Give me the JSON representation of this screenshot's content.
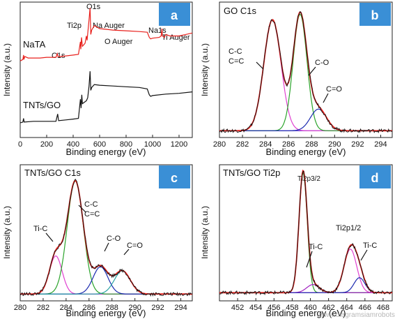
{
  "chart_data": [
    {
      "id": "a",
      "type": "line",
      "badge": "a",
      "xlabel": "Binding energy (eV)",
      "ylabel": "Intensity (a.u.)",
      "xlim": [
        0,
        1300
      ],
      "xticks": [
        0,
        200,
        400,
        600,
        800,
        1000,
        1200
      ],
      "series": [
        {
          "name": "NaTA",
          "color": "#e8201c",
          "points": [
            [
              0,
              0.62
            ],
            [
              20,
              0.63
            ],
            [
              25,
              0.66
            ],
            [
              28,
              0.63
            ],
            [
              35,
              0.65
            ],
            [
              60,
              0.64
            ],
            [
              100,
              0.64
            ],
            [
              150,
              0.64
            ],
            [
              200,
              0.645
            ],
            [
              270,
              0.645
            ],
            [
              280,
              0.67
            ],
            [
              285,
              0.65
            ],
            [
              300,
              0.65
            ],
            [
              350,
              0.655
            ],
            [
              400,
              0.66
            ],
            [
              440,
              0.665
            ],
            [
              455,
              0.75
            ],
            [
              458,
              0.7
            ],
            [
              463,
              0.78
            ],
            [
              470,
              0.72
            ],
            [
              490,
              0.74
            ],
            [
              500,
              0.79
            ],
            [
              505,
              0.76
            ],
            [
              520,
              0.9
            ],
            [
              528,
              0.98
            ],
            [
              533,
              0.8
            ],
            [
              540,
              0.83
            ],
            [
              560,
              0.86
            ],
            [
              580,
              0.85
            ],
            [
              600,
              0.84
            ],
            [
              650,
              0.835
            ],
            [
              700,
              0.83
            ],
            [
              800,
              0.825
            ],
            [
              900,
              0.82
            ],
            [
              960,
              0.815
            ],
            [
              975,
              0.78
            ],
            [
              985,
              0.77
            ],
            [
              1000,
              0.775
            ],
            [
              1050,
              0.78
            ],
            [
              1065,
              0.79
            ],
            [
              1071,
              0.84
            ],
            [
              1074,
              0.79
            ],
            [
              1090,
              0.78
            ],
            [
              1100,
              0.8
            ],
            [
              1130,
              0.79
            ],
            [
              1200,
              0.79
            ],
            [
              1250,
              0.8
            ],
            [
              1300,
              0.81
            ]
          ]
        },
        {
          "name": "TNTs/GO",
          "color": "#111111",
          "points": [
            [
              0,
              0.2
            ],
            [
              20,
              0.205
            ],
            [
              25,
              0.23
            ],
            [
              30,
              0.205
            ],
            [
              100,
              0.21
            ],
            [
              200,
              0.21
            ],
            [
              270,
              0.21
            ],
            [
              283,
              0.26
            ],
            [
              290,
              0.215
            ],
            [
              350,
              0.22
            ],
            [
              400,
              0.225
            ],
            [
              440,
              0.23
            ],
            [
              455,
              0.36
            ],
            [
              460,
              0.3
            ],
            [
              465,
              0.39
            ],
            [
              470,
              0.33
            ],
            [
              500,
              0.35
            ],
            [
              510,
              0.37
            ],
            [
              520,
              0.45
            ],
            [
              528,
              0.55
            ],
            [
              533,
              0.42
            ],
            [
              540,
              0.44
            ],
            [
              560,
              0.46
            ],
            [
              600,
              0.455
            ],
            [
              700,
              0.45
            ],
            [
              800,
              0.445
            ],
            [
              900,
              0.44
            ],
            [
              960,
              0.43
            ],
            [
              975,
              0.39
            ],
            [
              985,
              0.38
            ],
            [
              1000,
              0.385
            ],
            [
              1100,
              0.395
            ],
            [
              1200,
              0.4
            ],
            [
              1300,
              0.41
            ]
          ]
        }
      ],
      "annotations": [
        "C1s",
        "Ti2p",
        "O1s",
        "Na Auger",
        "O Auger",
        "Na1s",
        "Ti Auger"
      ],
      "series_labels": [
        "NaTA",
        "TNTs/GO"
      ]
    },
    {
      "id": "b",
      "type": "line",
      "title": "GO C1s",
      "badge": "b",
      "xlabel": "Binding energy (eV)",
      "ylabel": "Intensity (a.u.)",
      "xlim": [
        280,
        295
      ],
      "xticks": [
        280,
        282,
        284,
        286,
        288,
        290,
        292,
        294
      ],
      "baseline": 0.05,
      "peaks": [
        {
          "center": 284.6,
          "height": 0.82,
          "width": 0.75,
          "color": "#e040d0",
          "label": "C-C\nC=C"
        },
        {
          "center": 287.0,
          "height": 0.86,
          "width": 0.6,
          "color": "#2aa32a",
          "label": "C-O"
        },
        {
          "center": 288.6,
          "height": 0.16,
          "width": 0.7,
          "color": "#1c2bb0",
          "label": "C=O"
        }
      ],
      "labels": [
        "C-C",
        "C=C",
        "C-O",
        "C=O"
      ]
    },
    {
      "id": "c",
      "type": "line",
      "title": "TNTs/GO C1s",
      "badge": "c",
      "xlabel": "Binding energy (eV)",
      "ylabel": "Intensity (a.u.)",
      "xlim": [
        280,
        295
      ],
      "xticks": [
        280,
        282,
        284,
        286,
        288,
        290,
        292,
        294
      ],
      "baseline": 0.05,
      "peaks": [
        {
          "center": 283.1,
          "height": 0.28,
          "width": 0.55,
          "color": "#e040d0",
          "label": "Ti-C"
        },
        {
          "center": 284.8,
          "height": 0.83,
          "width": 0.7,
          "color": "#2aa32a",
          "label": "C-C\nC=C"
        },
        {
          "center": 287.0,
          "height": 0.2,
          "width": 0.65,
          "color": "#1c2bb0",
          "label": "C-O"
        },
        {
          "center": 288.9,
          "height": 0.17,
          "width": 0.7,
          "color": "#2aa3a3",
          "label": "C=O"
        }
      ],
      "labels": [
        "Ti-C",
        "C-C",
        "C=C",
        "C-O",
        "C=O"
      ]
    },
    {
      "id": "d",
      "type": "line",
      "title": "TNTs/GO Ti2p",
      "badge": "d",
      "xlabel": "Binding energy (eV)",
      "ylabel": "Intensity (a.u.)",
      "xlim": [
        450,
        469
      ],
      "xticks": [
        452,
        454,
        456,
        458,
        460,
        462,
        464,
        466,
        468
      ],
      "baseline": 0.06,
      "peaks": [
        {
          "center": 459.2,
          "height": 0.88,
          "width": 0.45,
          "color": "#2aa32a",
          "label": "Ti2p3/2"
        },
        {
          "center": 460.3,
          "height": 0.06,
          "width": 0.7,
          "color": "#a020c0",
          "label": "Ti-C"
        },
        {
          "center": 464.4,
          "height": 0.32,
          "width": 0.7,
          "color": "#e040d0",
          "label": "Ti2p1/2"
        },
        {
          "center": 465.4,
          "height": 0.11,
          "width": 0.6,
          "color": "#1c2bb0",
          "label": "Ti-C"
        }
      ],
      "labels": [
        "Ti2p3/2",
        "Ti-C",
        "Ti2p1/2",
        "Ti-C"
      ]
    }
  ],
  "watermark": "www.diagramsiamrobots.com",
  "colors": {
    "badge": "#3a8fd6",
    "envelope": "#e8201c",
    "data": "#111111",
    "baseline": "#5a2ad0"
  }
}
